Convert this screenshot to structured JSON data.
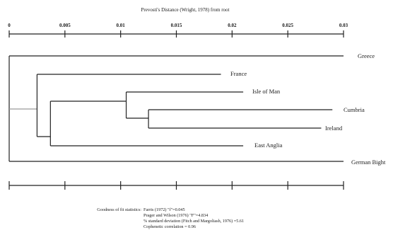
{
  "figure": {
    "axis_title": "Prevosti's Distance (Wright, 1978) from root",
    "scale_ticks": [
      "0",
      "0.005",
      "0.01",
      "0.015",
      "0.02",
      "0.025",
      "0.03"
    ],
    "scale_max": 0.03,
    "tree": {
      "leaves": [
        {
          "name": "Greece",
          "distance": 0.03
        },
        {
          "name": "France",
          "distance": 0.019
        },
        {
          "name": "Isle of Man",
          "distance": 0.021
        },
        {
          "name": "Cumbria",
          "distance": 0.029
        },
        {
          "name": "Ireland",
          "distance": 0.028
        },
        {
          "name": "East Anglia",
          "distance": 0.021
        },
        {
          "name": "German Bight",
          "distance": 0.03
        }
      ],
      "nodes": [
        {
          "id": "root",
          "distance": 0.0
        },
        {
          "id": "ingroup",
          "distance": 0.0025
        },
        {
          "id": "manx_group",
          "distance": 0.0105
        },
        {
          "id": "cumbria_ireland",
          "distance": 0.0125
        },
        {
          "id": "eastanglia_group",
          "distance": 0.0037
        }
      ]
    },
    "stats": {
      "heading": "Goodness of fit statistics:",
      "lines": [
        "Farris (1972) \"f\"=0.045",
        "Prager and Wilson (1976) \"F\"=4.834",
        "% standard deviation (Fitch and Margoliash, 1976) =5.61",
        "Cophenetic correlation = 0.96"
      ]
    }
  }
}
